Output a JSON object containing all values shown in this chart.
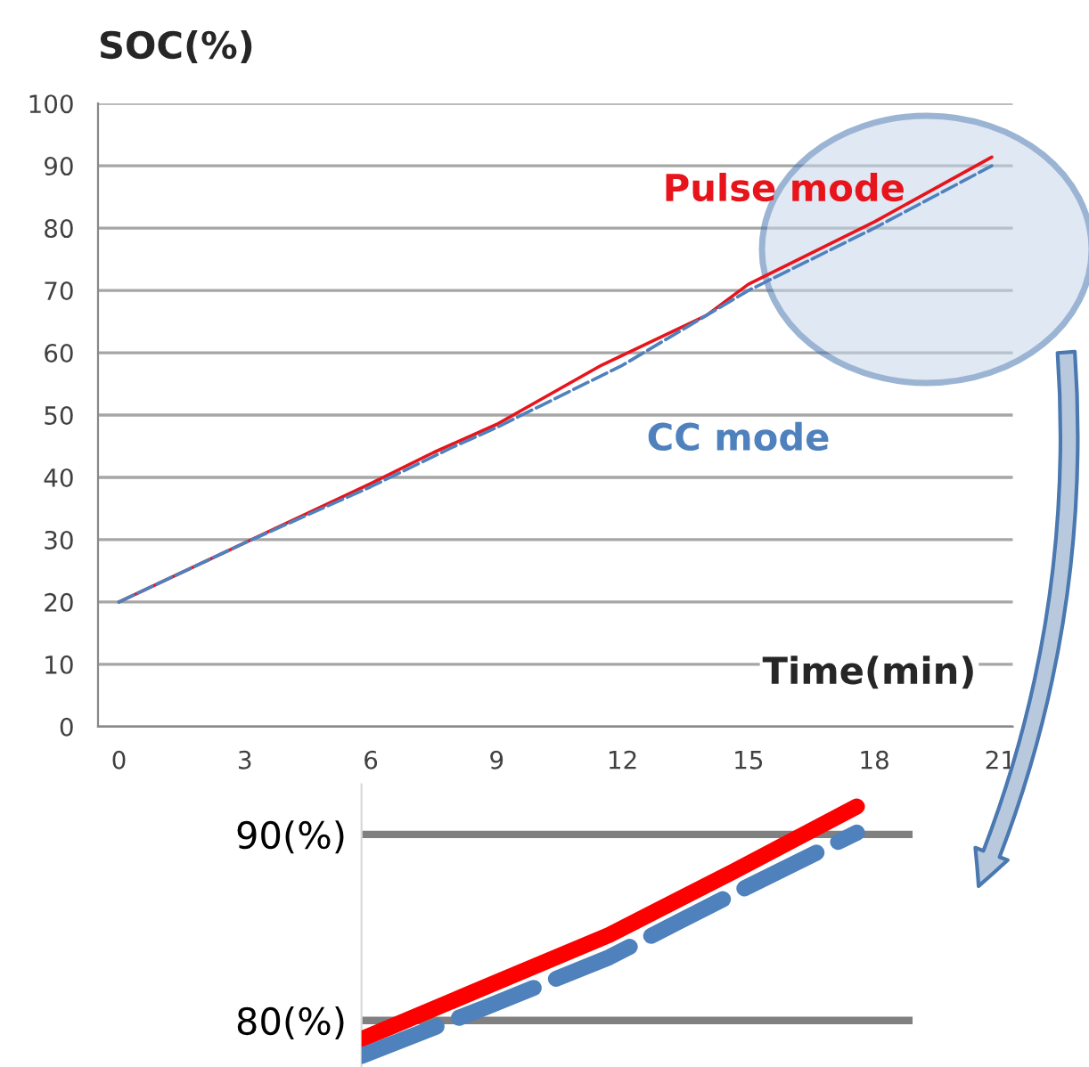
{
  "chart_data": [
    {
      "type": "line",
      "ylabel": "SOC(%)",
      "xlabel": "Time(min)",
      "xlim": [
        -0.5,
        21.3
      ],
      "xticks": [
        0,
        3,
        6,
        9,
        12,
        15,
        18,
        21
      ],
      "ylim": [
        0,
        100
      ],
      "yticks": [
        0,
        10,
        20,
        30,
        40,
        50,
        60,
        70,
        80,
        90,
        100
      ],
      "grid": "y",
      "legend": false,
      "series": [
        {
          "name": "Pulse mode",
          "color": "#e8141b",
          "line_style": "solid",
          "x": [
            0,
            3,
            6,
            7.5,
            9,
            11.5,
            14,
            15,
            18,
            20.8
          ],
          "values": [
            20,
            29.5,
            39,
            44,
            48.5,
            58,
            66,
            71,
            81,
            91.4
          ]
        },
        {
          "name": "CC mode",
          "color": "#4f81bd",
          "line_style": "dashed",
          "x": [
            0,
            3,
            6,
            8,
            9,
            12,
            15,
            18,
            20.8
          ],
          "values": [
            20,
            29.5,
            38.5,
            45,
            48,
            58,
            70,
            80,
            90
          ]
        }
      ]
    },
    {
      "type": "line",
      "categories": [
        null,
        null,
        null,
        null,
        null
      ],
      "ylim": [
        77.5,
        92.7
      ],
      "yticks": [
        {
          "value": 80,
          "label": "80(%)"
        },
        {
          "value": 90,
          "label": "90(%)"
        }
      ],
      "tick_labels": "y",
      "grid": "y",
      "legend": false,
      "series": [
        {
          "color": "#ff0000",
          "line_style": "solid",
          "values": [
            79.0,
            81.8,
            84.6,
            88.0,
            91.5
          ]
        },
        {
          "color": "#4f81bd",
          "line_style": "dashed",
          "values": [
            78.1,
            80.7,
            83.4,
            86.8,
            90.1
          ]
        }
      ]
    }
  ]
}
